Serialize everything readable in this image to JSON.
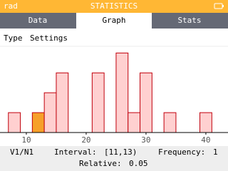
{
  "status_bar": {
    "angle_unit": "rad",
    "title": "STATISTICS"
  },
  "tabs": [
    "Data",
    "Graph",
    "Stats"
  ],
  "toolbar": [
    "Type",
    "Settings"
  ],
  "chart_data": {
    "type": "histogram",
    "bins": [
      7,
      9,
      11,
      13,
      15,
      17,
      19,
      21,
      23,
      25,
      27,
      29,
      31,
      33,
      35,
      37,
      39,
      41
    ],
    "values": [
      1,
      0,
      1,
      2,
      3,
      0,
      0,
      3,
      0,
      4,
      1,
      3,
      0,
      1,
      0,
      0,
      1
    ],
    "color": "#ffd0d0",
    "edge_color": "#c0000c",
    "highlight_color": "#f6a02a",
    "selected_bin": 2,
    "xlim": [
      5.6,
      43.7
    ],
    "xticks": [
      10,
      20,
      30,
      40
    ],
    "ylim": [
      0,
      4.3
    ]
  },
  "banner": {
    "series": "V1/N1",
    "interval_label": "Interval:",
    "interval": "[11,13)",
    "frequency_label": "Frequency:",
    "frequency": 1,
    "relative_label": "Relative:",
    "relative": 0.05
  }
}
